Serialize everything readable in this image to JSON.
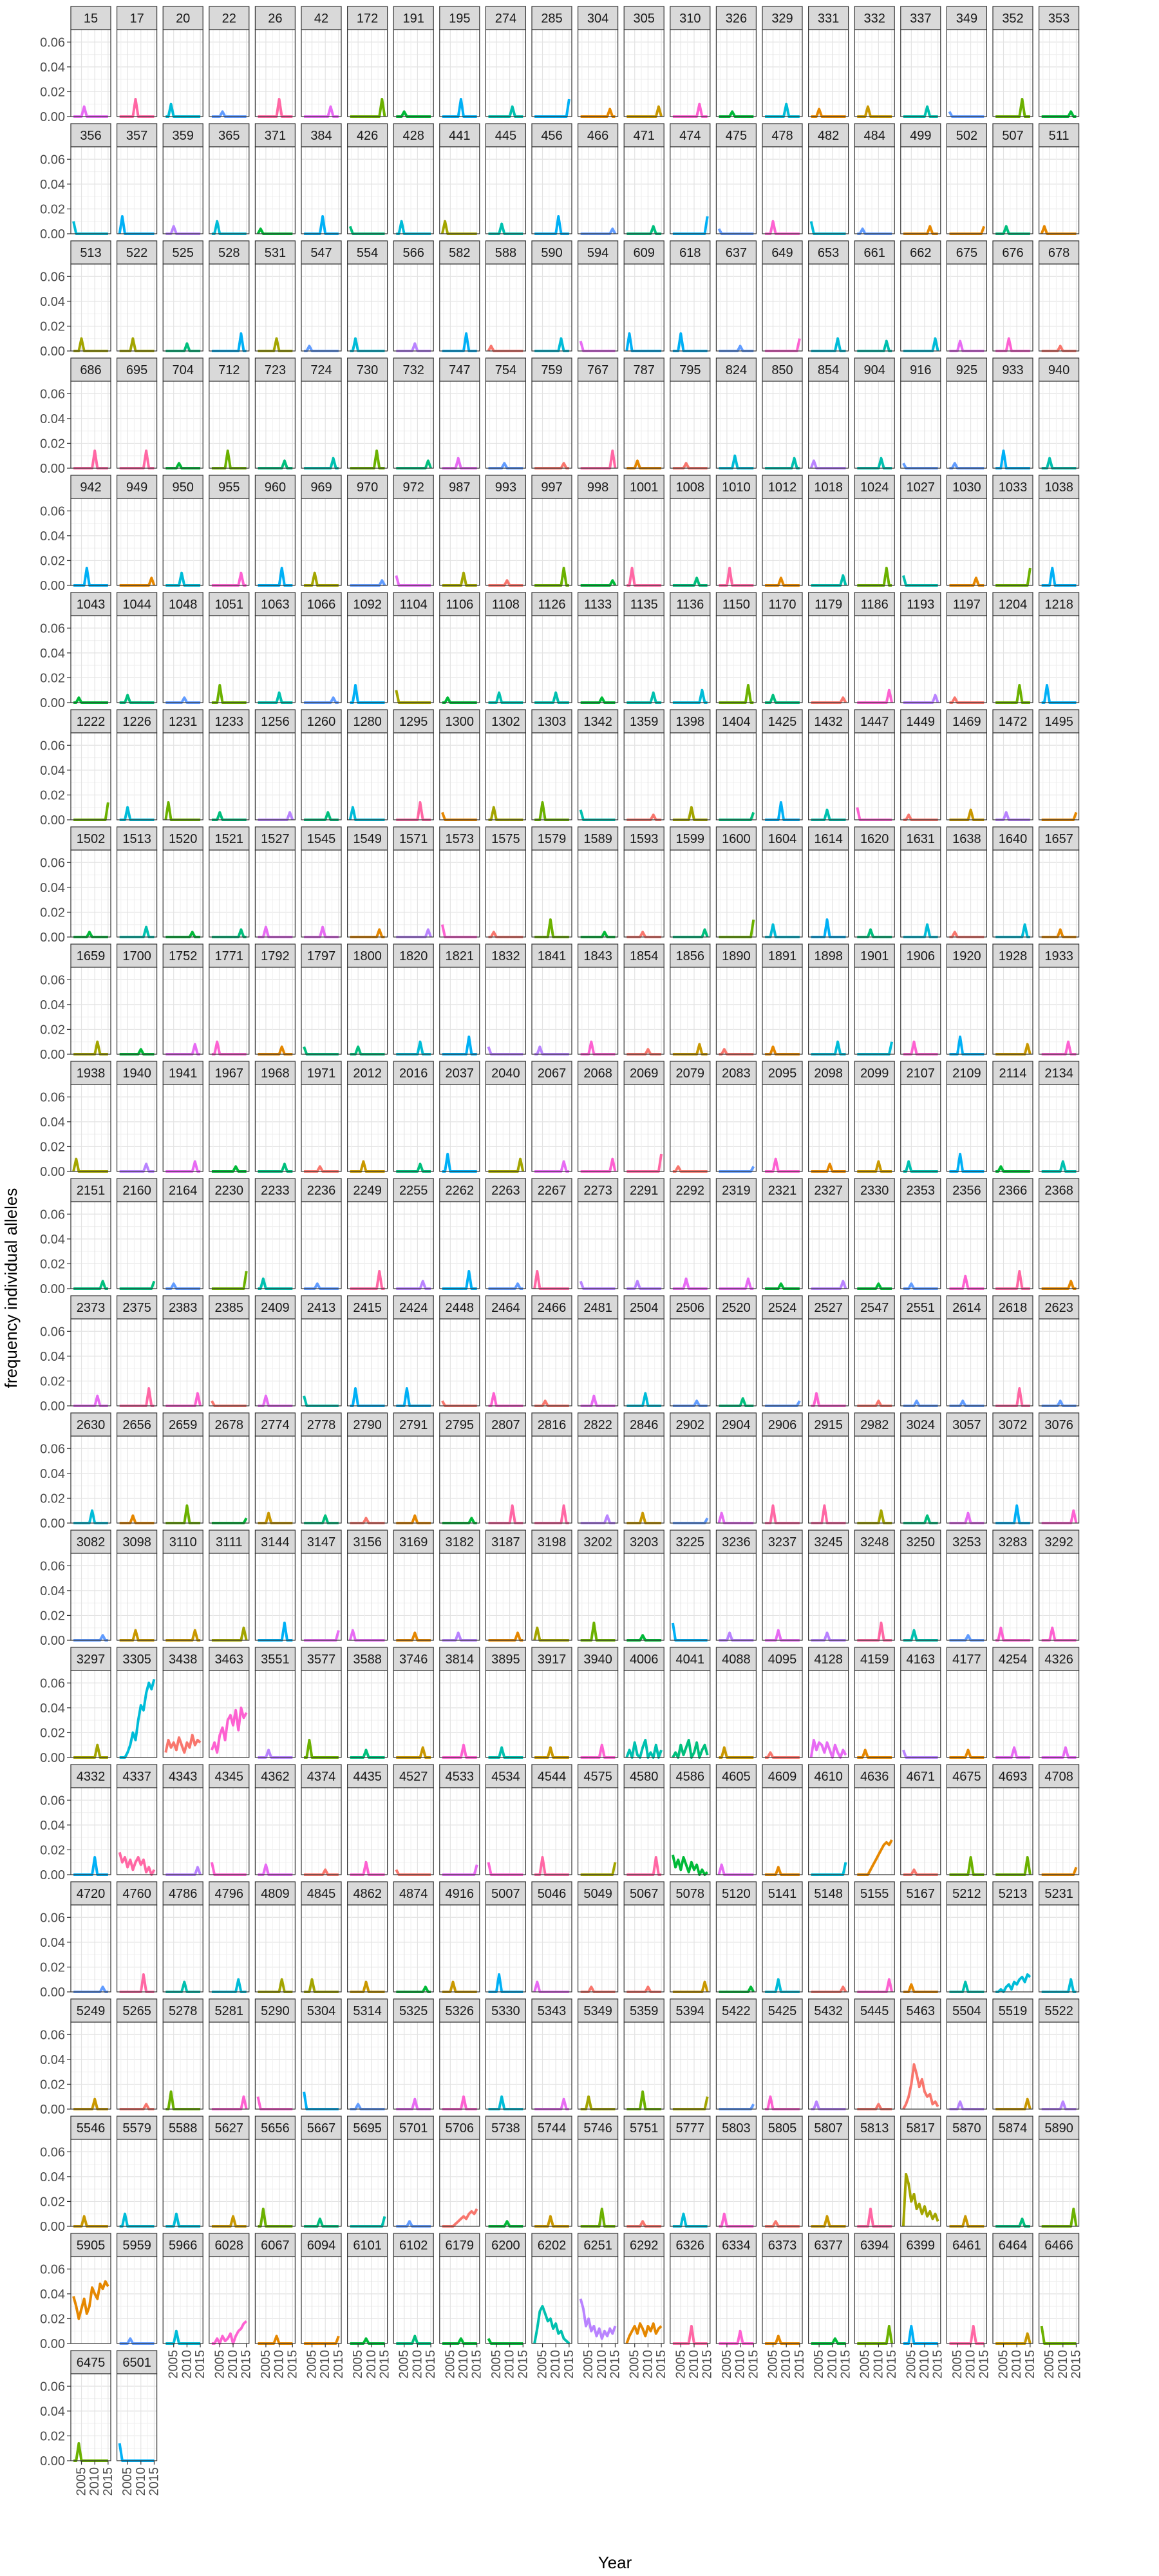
{
  "chart_data": {
    "type": "line",
    "facet_grid": true,
    "xlabel": "Year",
    "ylabel": "frequency individual alleles",
    "ylim": [
      0,
      0.07
    ],
    "yticks": [
      "0.00",
      "0.02",
      "0.04",
      "0.06"
    ],
    "yticks_values": [
      0,
      0.02,
      0.04,
      0.06
    ],
    "xlim": [
      2001,
      2016
    ],
    "xticks": [
      "2005",
      "2010",
      "2015"
    ],
    "xticks_values": [
      2005,
      2010,
      2015
    ],
    "grid": true,
    "legend": "none",
    "panels": [
      "15",
      "17",
      "20",
      "22",
      "26",
      "42",
      "172",
      "191",
      "195",
      "274",
      "285",
      "304",
      "305",
      "310",
      "326",
      "329",
      "331",
      "332",
      "337",
      "349",
      "352",
      "353",
      "356",
      "357",
      "359",
      "365",
      "371",
      "384",
      "426",
      "428",
      "441",
      "445",
      "456",
      "466",
      "471",
      "474",
      "475",
      "478",
      "482",
      "484",
      "499",
      "502",
      "507",
      "511",
      "513",
      "522",
      "525",
      "528",
      "531",
      "547",
      "554",
      "566",
      "582",
      "588",
      "590",
      "594",
      "609",
      "618",
      "637",
      "649",
      "653",
      "661",
      "662",
      "675",
      "676",
      "678",
      "686",
      "695",
      "704",
      "712",
      "723",
      "724",
      "730",
      "732",
      "747",
      "754",
      "759",
      "767",
      "787",
      "795",
      "824",
      "850",
      "854",
      "904",
      "916",
      "925",
      "933",
      "940",
      "942",
      "949",
      "950",
      "955",
      "960",
      "969",
      "970",
      "972",
      "987",
      "993",
      "997",
      "998",
      "1001",
      "1008",
      "1010",
      "1012",
      "1018",
      "1024",
      "1027",
      "1030",
      "1033",
      "1038",
      "1043",
      "1044",
      "1048",
      "1051",
      "1063",
      "1066",
      "1092",
      "1104",
      "1106",
      "1108",
      "1126",
      "1133",
      "1135",
      "1136",
      "1150",
      "1170",
      "1179",
      "1186",
      "1193",
      "1197",
      "1204",
      "1218",
      "1222",
      "1226",
      "1231",
      "1233",
      "1256",
      "1260",
      "1280",
      "1295",
      "1300",
      "1302",
      "1303",
      "1342",
      "1359",
      "1398",
      "1404",
      "1425",
      "1432",
      "1447",
      "1449",
      "1469",
      "1472",
      "1495",
      "1502",
      "1513",
      "1520",
      "1521",
      "1527",
      "1545",
      "1549",
      "1571",
      "1573",
      "1575",
      "1579",
      "1589",
      "1593",
      "1599",
      "1600",
      "1604",
      "1614",
      "1620",
      "1631",
      "1638",
      "1640",
      "1657",
      "1659",
      "1700",
      "1752",
      "1771",
      "1792",
      "1797",
      "1800",
      "1820",
      "1821",
      "1832",
      "1841",
      "1843",
      "1854",
      "1856",
      "1890",
      "1891",
      "1898",
      "1901",
      "1906",
      "1920",
      "1928",
      "1933",
      "1938",
      "1940",
      "1941",
      "1967",
      "1968",
      "1971",
      "2012",
      "2016",
      "2037",
      "2040",
      "2067",
      "2068",
      "2069",
      "2079",
      "2083",
      "2095",
      "2098",
      "2099",
      "2107",
      "2109",
      "2114",
      "2134",
      "2151",
      "2160",
      "2164",
      "2230",
      "2233",
      "2236",
      "2249",
      "2255",
      "2262",
      "2263",
      "2267",
      "2273",
      "2291",
      "2292",
      "2319",
      "2321",
      "2327",
      "2330",
      "2353",
      "2356",
      "2366",
      "2368",
      "2373",
      "2375",
      "2383",
      "2385",
      "2409",
      "2413",
      "2415",
      "2424",
      "2448",
      "2464",
      "2466",
      "2481",
      "2504",
      "2506",
      "2520",
      "2524",
      "2527",
      "2547",
      "2551",
      "2614",
      "2618",
      "2623",
      "2630",
      "2656",
      "2659",
      "2678",
      "2774",
      "2778",
      "2790",
      "2791",
      "2795",
      "2807",
      "2816",
      "2822",
      "2846",
      "2902",
      "2904",
      "2906",
      "2915",
      "2982",
      "3024",
      "3057",
      "3072",
      "3076",
      "3082",
      "3098",
      "3110",
      "3111",
      "3144",
      "3147",
      "3156",
      "3169",
      "3182",
      "3187",
      "3198",
      "3202",
      "3203",
      "3225",
      "3236",
      "3237",
      "3245",
      "3248",
      "3250",
      "3253",
      "3283",
      "3292",
      "3297",
      "3305",
      "3438",
      "3463",
      "3551",
      "3577",
      "3588",
      "3746",
      "3814",
      "3895",
      "3917",
      "3940",
      "4006",
      "4041",
      "4088",
      "4095",
      "4128",
      "4159",
      "4163",
      "4177",
      "4254",
      "4326",
      "4332",
      "4337",
      "4343",
      "4345",
      "4362",
      "4374",
      "4435",
      "4527",
      "4533",
      "4534",
      "4544",
      "4575",
      "4580",
      "4586",
      "4605",
      "4609",
      "4610",
      "4636",
      "4671",
      "4675",
      "4693",
      "4708",
      "4720",
      "4760",
      "4786",
      "4796",
      "4809",
      "4845",
      "4862",
      "4874",
      "4916",
      "5007",
      "5046",
      "5049",
      "5067",
      "5078",
      "5120",
      "5141",
      "5148",
      "5155",
      "5167",
      "5212",
      "5213",
      "5231",
      "5249",
      "5265",
      "5278",
      "5281",
      "5290",
      "5304",
      "5314",
      "5325",
      "5326",
      "5330",
      "5343",
      "5349",
      "5359",
      "5394",
      "5422",
      "5425",
      "5432",
      "5445",
      "5463",
      "5504",
      "5519",
      "5522",
      "5546",
      "5579",
      "5588",
      "5627",
      "5656",
      "5667",
      "5695",
      "5701",
      "5706",
      "5738",
      "5744",
      "5746",
      "5751",
      "5777",
      "5803",
      "5805",
      "5807",
      "5813",
      "5817",
      "5870",
      "5874",
      "5890",
      "5905",
      "5959",
      "5966",
      "6028",
      "6067",
      "6094",
      "6101",
      "6102",
      "6179",
      "6200",
      "6202",
      "6251",
      "6292",
      "6326",
      "6334",
      "6373",
      "6377",
      "6394",
      "6399",
      "6461",
      "6464",
      "6466",
      "6475",
      "6501"
    ],
    "palette": [
      "#F8766D",
      "#E58700",
      "#C99800",
      "#A3A500",
      "#6BB100",
      "#00BA38",
      "#00BF7D",
      "#00C0AF",
      "#00BCD8",
      "#00B0F6",
      "#619CFF",
      "#B983FF",
      "#E76BF3",
      "#FD61D1",
      "#FF67A4"
    ],
    "x": [
      2002,
      2003,
      2004,
      2005,
      2006,
      2007,
      2008,
      2009,
      2010,
      2011,
      2012,
      2013,
      2014,
      2015
    ],
    "series": [
      {
        "panel": "3305",
        "values": [
          0.0,
          0.0,
          0.0,
          0.004,
          0.01,
          0.02,
          0.014,
          0.03,
          0.042,
          0.038,
          0.052,
          0.06,
          0.055,
          0.063
        ]
      },
      {
        "panel": "3463",
        "values": [
          0.006,
          0.012,
          0.004,
          0.018,
          0.024,
          0.014,
          0.03,
          0.034,
          0.026,
          0.038,
          0.022,
          0.04,
          0.032,
          0.036
        ]
      },
      {
        "panel": "3438",
        "values": [
          0.004,
          0.014,
          0.008,
          0.012,
          0.006,
          0.016,
          0.01,
          0.004,
          0.012,
          0.008,
          0.018,
          0.01,
          0.014,
          0.012
        ]
      },
      {
        "panel": "4636",
        "values": [
          0.0,
          0.0,
          0.0,
          0.0,
          0.0,
          0.004,
          0.008,
          0.012,
          0.016,
          0.02,
          0.024,
          0.026,
          0.024,
          0.028
        ]
      },
      {
        "panel": "5905",
        "values": [
          0.038,
          0.03,
          0.02,
          0.028,
          0.036,
          0.024,
          0.03,
          0.045,
          0.04,
          0.036,
          0.048,
          0.044,
          0.05,
          0.046
        ]
      },
      {
        "panel": "5817",
        "values": [
          0.0,
          0.042,
          0.034,
          0.02,
          0.026,
          0.014,
          0.018,
          0.01,
          0.016,
          0.008,
          0.012,
          0.006,
          0.01,
          0.004
        ]
      },
      {
        "panel": "5463",
        "values": [
          0.0,
          0.004,
          0.01,
          0.02,
          0.036,
          0.028,
          0.018,
          0.024,
          0.014,
          0.01,
          0.012,
          0.004,
          0.006,
          0.002
        ]
      },
      {
        "panel": "6202",
        "values": [
          0.0,
          0.012,
          0.026,
          0.03,
          0.024,
          0.018,
          0.02,
          0.012,
          0.016,
          0.008,
          0.01,
          0.004,
          0.002,
          0.0
        ]
      },
      {
        "panel": "6251",
        "values": [
          0.036,
          0.028,
          0.014,
          0.02,
          0.01,
          0.014,
          0.006,
          0.012,
          0.004,
          0.01,
          0.006,
          0.012,
          0.008,
          0.014
        ]
      },
      {
        "panel": "4337",
        "values": [
          0.018,
          0.01,
          0.014,
          0.006,
          0.012,
          0.004,
          0.01,
          0.014,
          0.008,
          0.012,
          0.002,
          0.006,
          0.0,
          0.004
        ]
      },
      {
        "panel": "4586",
        "values": [
          0.016,
          0.006,
          0.012,
          0.004,
          0.014,
          0.008,
          0.002,
          0.01,
          0.004,
          0.008,
          0.0,
          0.004,
          0.0,
          0.002
        ]
      },
      {
        "panel": "4128",
        "values": [
          0.0,
          0.014,
          0.006,
          0.012,
          0.01,
          0.004,
          0.012,
          0.006,
          0.0,
          0.01,
          0.004,
          0.0,
          0.006,
          0.002
        ]
      },
      {
        "panel": "4041",
        "values": [
          0.0,
          0.004,
          0.0,
          0.01,
          0.002,
          0.008,
          0.014,
          0.0,
          0.004,
          0.012,
          0.0,
          0.006,
          0.01,
          0.002
        ]
      },
      {
        "panel": "4006",
        "values": [
          0.0,
          0.006,
          0.0,
          0.012,
          0.002,
          0.0,
          0.008,
          0.014,
          0.0,
          0.004,
          0.0,
          0.01,
          0.0,
          0.006
        ]
      },
      {
        "panel": "5706",
        "values": [
          0.0,
          0.0,
          0.0,
          0.0,
          0.0,
          0.002,
          0.004,
          0.006,
          0.008,
          0.006,
          0.01,
          0.012,
          0.01,
          0.014
        ]
      },
      {
        "panel": "5213",
        "values": [
          0.0,
          0.0,
          0.002,
          0.0,
          0.004,
          0.006,
          0.002,
          0.008,
          0.006,
          0.01,
          0.012,
          0.008,
          0.014,
          0.012
        ]
      },
      {
        "panel": "6292",
        "values": [
          0.0,
          0.006,
          0.01,
          0.014,
          0.008,
          0.016,
          0.012,
          0.006,
          0.014,
          0.01,
          0.016,
          0.008,
          0.012,
          0.014
        ]
      },
      {
        "panel": "6028",
        "values": [
          0.0,
          0.0,
          0.004,
          0.0,
          0.006,
          0.002,
          0.004,
          0.008,
          0.0,
          0.006,
          0.01,
          0.012,
          0.016,
          0.018
        ]
      }
    ],
    "spike_values": [
      0.004,
      0.006,
      0.008,
      0.01,
      0.014
    ],
    "spike_year": 2004
  }
}
